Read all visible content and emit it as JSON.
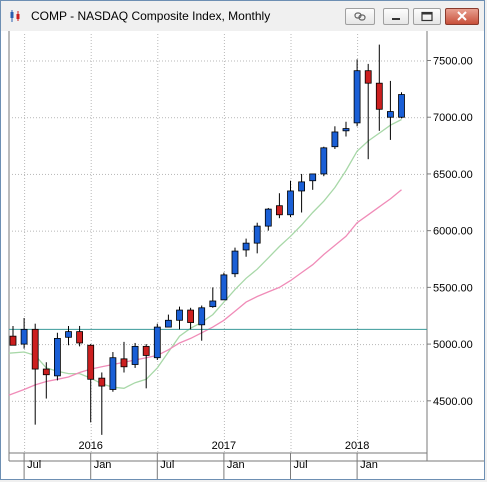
{
  "window": {
    "title": "COMP - NASDAQ Composite Index, Monthly",
    "buttons": [
      "link",
      "minimize",
      "restore",
      "close"
    ]
  },
  "chart_data": {
    "type": "candlestick",
    "title": "COMP - NASDAQ Composite Index, Monthly",
    "y_ticks": [
      "4500.00",
      "5000.00",
      "5500.00",
      "6000.00",
      "6500.00",
      "7000.00",
      "7500.00"
    ],
    "ylim": [
      4040,
      7760
    ],
    "x_labels_bottom": [
      "Jul",
      "Jan",
      "Jul",
      "Jan",
      "Jul",
      "Jan"
    ],
    "x_labels_years": [
      "2016",
      "2017",
      "2018"
    ],
    "grid": "dotted",
    "reference_line": 5130,
    "colors": {
      "up": "#1a5fd6",
      "down": "#cc1f1f",
      "ma_fast": "#a8d8a8",
      "ma_slow": "#f08cb8",
      "reference": "#3a9a9a"
    },
    "candles": [
      {
        "date": "2015-06",
        "o": 5070,
        "h": 5160,
        "l": 4990,
        "c": 4990
      },
      {
        "date": "2015-07",
        "o": 5000,
        "h": 5230,
        "l": 4960,
        "c": 5130
      },
      {
        "date": "2015-08",
        "o": 5130,
        "h": 5180,
        "l": 4290,
        "c": 4780
      },
      {
        "date": "2015-09",
        "o": 4780,
        "h": 4840,
        "l": 4520,
        "c": 4730
      },
      {
        "date": "2015-10",
        "o": 4720,
        "h": 5100,
        "l": 4680,
        "c": 5050
      },
      {
        "date": "2015-11",
        "o": 5060,
        "h": 5160,
        "l": 4990,
        "c": 5110
      },
      {
        "date": "2015-12",
        "o": 5110,
        "h": 5160,
        "l": 4980,
        "c": 5010
      },
      {
        "date": "2016-01",
        "o": 4990,
        "h": 5000,
        "l": 4310,
        "c": 4690
      },
      {
        "date": "2016-02",
        "o": 4700,
        "h": 4750,
        "l": 4200,
        "c": 4630
      },
      {
        "date": "2016-03",
        "o": 4600,
        "h": 4930,
        "l": 4580,
        "c": 4880
      },
      {
        "date": "2016-04",
        "o": 4870,
        "h": 5020,
        "l": 4750,
        "c": 4800
      },
      {
        "date": "2016-05",
        "o": 4820,
        "h": 5010,
        "l": 4790,
        "c": 4980
      },
      {
        "date": "2016-06",
        "o": 4980,
        "h": 5000,
        "l": 4610,
        "c": 4900
      },
      {
        "date": "2016-07",
        "o": 4880,
        "h": 5180,
        "l": 4860,
        "c": 5150
      },
      {
        "date": "2016-08",
        "o": 5150,
        "h": 5260,
        "l": 5160,
        "c": 5210
      },
      {
        "date": "2016-09",
        "o": 5210,
        "h": 5330,
        "l": 5130,
        "c": 5300
      },
      {
        "date": "2016-10",
        "o": 5300,
        "h": 5320,
        "l": 5130,
        "c": 5190
      },
      {
        "date": "2016-11",
        "o": 5170,
        "h": 5340,
        "l": 5030,
        "c": 5320
      },
      {
        "date": "2016-12",
        "o": 5330,
        "h": 5500,
        "l": 5320,
        "c": 5380
      },
      {
        "date": "2017-01",
        "o": 5390,
        "h": 5630,
        "l": 5390,
        "c": 5610
      },
      {
        "date": "2017-02",
        "o": 5620,
        "h": 5850,
        "l": 5590,
        "c": 5820
      },
      {
        "date": "2017-03",
        "o": 5830,
        "h": 5930,
        "l": 5770,
        "c": 5890
      },
      {
        "date": "2017-04",
        "o": 5890,
        "h": 6070,
        "l": 5800,
        "c": 6040
      },
      {
        "date": "2017-05",
        "o": 6040,
        "h": 6200,
        "l": 6000,
        "c": 6190
      },
      {
        "date": "2017-06",
        "o": 6220,
        "h": 6330,
        "l": 6110,
        "c": 6140
      },
      {
        "date": "2017-07",
        "o": 6140,
        "h": 6440,
        "l": 6120,
        "c": 6350
      },
      {
        "date": "2017-08",
        "o": 6350,
        "h": 6500,
        "l": 6160,
        "c": 6430
      },
      {
        "date": "2017-09",
        "o": 6440,
        "h": 6500,
        "l": 6360,
        "c": 6500
      },
      {
        "date": "2017-10",
        "o": 6500,
        "h": 6740,
        "l": 6480,
        "c": 6730
      },
      {
        "date": "2017-11",
        "o": 6740,
        "h": 6920,
        "l": 6720,
        "c": 6870
      },
      {
        "date": "2017-12",
        "o": 6880,
        "h": 6960,
        "l": 6830,
        "c": 6900
      },
      {
        "date": "2018-01",
        "o": 6950,
        "h": 7510,
        "l": 6920,
        "c": 7410
      },
      {
        "date": "2018-02",
        "o": 7410,
        "h": 7470,
        "l": 6630,
        "c": 7300
      },
      {
        "date": "2018-03",
        "o": 7300,
        "h": 7640,
        "l": 6880,
        "c": 7070
      },
      {
        "date": "2018-04",
        "o": 7000,
        "h": 7320,
        "l": 6800,
        "c": 7050
      },
      {
        "date": "2018-05",
        "o": 7000,
        "h": 7220,
        "l": 6990,
        "c": 7200
      }
    ],
    "series": [
      {
        "values": [
          4920,
          4930,
          4900,
          4790,
          4760,
          4740,
          4740,
          4700,
          4650,
          4620,
          4610,
          4660,
          4690,
          4790,
          4930,
          5070,
          5140,
          5190,
          5260,
          5370,
          5480,
          5580,
          5660,
          5760,
          5860,
          5950,
          6050,
          6160,
          6260,
          6380,
          6530,
          6700,
          6790,
          6860,
          6930,
          6980
        ]
      },
      {
        "values": [
          4550,
          4600,
          4640,
          4670,
          4690,
          4710,
          4750,
          4780,
          4800,
          4820,
          4840,
          4860,
          4880,
          4900,
          4950,
          5010,
          5050,
          5100,
          5150,
          5210,
          5290,
          5370,
          5420,
          5460,
          5500,
          5560,
          5630,
          5700,
          5790,
          5870,
          5950,
          6070,
          6140,
          6210,
          6280,
          6360
        ]
      }
    ]
  }
}
